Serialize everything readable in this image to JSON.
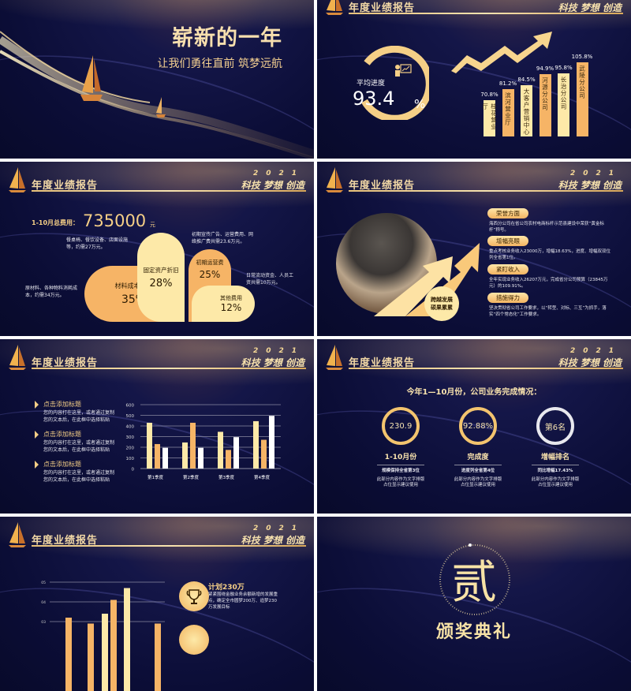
{
  "header": {
    "title": "年度业绩报告",
    "year": "2021",
    "slogan": "科技 梦想 创造"
  },
  "colors": {
    "background": "#0b0d36",
    "gold": "#f5cf86",
    "light_gold": "#fde9a8",
    "orange": "#f6b466",
    "white": "#ffffff"
  },
  "cover": {
    "title": "崭新的一年",
    "subtitle": "让我们勇往直前 筑梦远航"
  },
  "progress_slide": {
    "label": "平均进度",
    "value": "93.4",
    "unit": "%",
    "icon": "presentation-chart-icon",
    "bars": [
      {
        "name": "桂花营业厅",
        "value_label": "70.8%"
      },
      {
        "name": "滨河营业厅",
        "value_label": "81.2%"
      },
      {
        "name": "大客户营销中心",
        "value_label": "84.5%"
      },
      {
        "name": "河源分公司",
        "value_label": "94.9%"
      },
      {
        "name": "长治分公司",
        "value_label": "95.8%"
      },
      {
        "name": "武陵分公司",
        "value_label": "105.8%"
      }
    ]
  },
  "cost_slide": {
    "total_label": "1-10月总费用：",
    "total_value": "735000",
    "total_unit": "元",
    "petals": [
      {
        "name": "材料成本消耗",
        "pct": "35%"
      },
      {
        "name": "固定资产折旧",
        "pct": "28%"
      },
      {
        "name": "初期运营费",
        "pct": "25%"
      },
      {
        "name": "其他费用",
        "pct": "12%"
      }
    ],
    "notes": {
      "materials": "原材料、各种物料消耗成本，约需34万元。",
      "fixed": "餐桌椅、餐饮设备、店面设施等，约需27万元。",
      "operating": "初期宣传广告、运营费用、网络推广费共需23.6万元。",
      "other": "日常流动资金、人员工资共需10万元。"
    }
  },
  "highlights_slide": {
    "badge_line1": "跨越发展",
    "badge_line2": "硕果累累",
    "items": [
      {
        "title": "荣誉方面",
        "text": "海西分公司在省公司农村电商标杆示范县建设中荣获“黄金标杆”称号。"
      },
      {
        "title": "增幅亮眼",
        "text": "重点考核业务收入23000万，增幅18.63%，进度、增幅双双位列全省第1位。"
      },
      {
        "title": "紧盯收入",
        "text": "全年实现业务收入26207万元，完成省分公司预算（23845万元）的109.91%。"
      },
      {
        "title": "措施得力",
        "text": "坚决贯彻省公司工作要求，以“转型、对标、三互”为抓手，落实“四个常态化”工作要求。"
      }
    ]
  },
  "quarter_slide": {
    "items": [
      {
        "title": "点击添加标题",
        "text1": "您的内容打在这里，或者通过复制",
        "text2": "您的文本后，在此框中选择粘贴"
      },
      {
        "title": "点击添加标题",
        "text1": "您的内容打在这里，或者通过复制",
        "text2": "您的文本后，在此框中选择粘贴"
      },
      {
        "title": "点击添加标题",
        "text1": "您的内容打在这里，或者通过复制",
        "text2": "您的文本后，在此框中选择粘贴"
      }
    ]
  },
  "completion_slide": {
    "title": "今年1—10月份，公司业务完成情况：",
    "items": [
      {
        "value": "230.9",
        "label": "1-10月份",
        "sub": "规模保持全省第3位",
        "desc1": "此部分内容作为文字排版",
        "desc2": "占位显示建议使用"
      },
      {
        "value": "92.88%",
        "label": "完成度",
        "sub": "进度列全省第4位",
        "desc1": "此部分内容作为文字排版",
        "desc2": "占位显示建议使用"
      },
      {
        "value": "第6名",
        "label": "增幅排名",
        "sub": "同比增幅17.43%",
        "desc1": "此部分内容作为文字排版",
        "desc2": "占位显示建议使用"
      }
    ]
  },
  "plan_slide": {
    "title": "计划230万",
    "icon": "trophy-icon",
    "text": "紧紧围绕金融业务余额新增的发展重点，确定全市圆梦200万、追梦230万发展目标"
  },
  "section_slide": {
    "numeral": "贰",
    "title": "颁奖典礼"
  },
  "chart_data": [
    {
      "type": "bar",
      "categories": [
        "桂花营业厅",
        "滨河营业厅",
        "大客户营销中心",
        "河源分公司",
        "长治分公司",
        "武陵分公司"
      ],
      "values": [
        70.8,
        81.2,
        84.5,
        94.9,
        95.8,
        105.8
      ],
      "data_labels": [
        "70.8%",
        "81.2%",
        "84.5%",
        "94.9%",
        "95.8%",
        "105.8%"
      ]
    },
    {
      "type": "bar",
      "categories": [
        "第1季度",
        "第2季度",
        "第3季度",
        "第4季度"
      ],
      "series": [
        {
          "values": [
            430,
            245,
            345,
            445
          ]
        },
        {
          "values": [
            230,
            430,
            175,
            270
          ]
        },
        {
          "values": [
            195,
            195,
            295,
            495
          ]
        }
      ],
      "yticks": [
        "600",
        "500",
        "400",
        "300",
        "200",
        "100",
        "0"
      ],
      "ylim": [
        0,
        600
      ],
      "grid": true
    },
    {
      "type": "bar",
      "values": [
        0.32,
        0.29,
        0.34,
        0.41,
        0.47,
        0.29
      ],
      "yticks": [
        "05",
        "04",
        "03"
      ],
      "grid": true
    }
  ]
}
